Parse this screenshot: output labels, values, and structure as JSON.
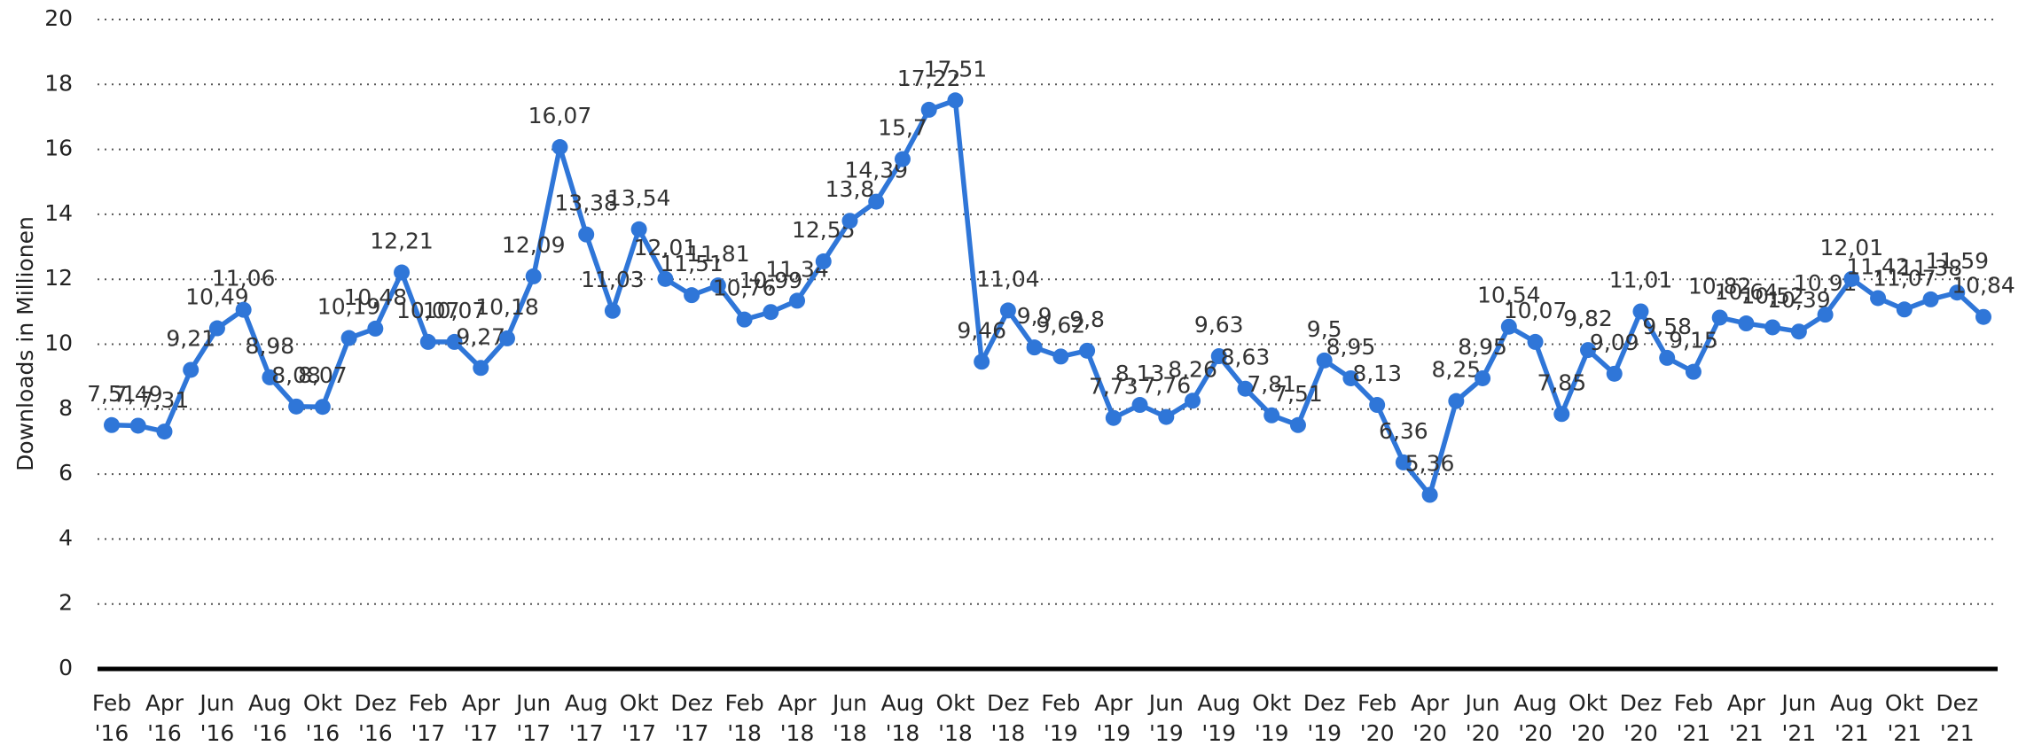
{
  "chart_data": {
    "type": "line",
    "y_label": "Downloads in Millionen",
    "categories": [
      "Feb '16",
      null,
      "Apr '16",
      null,
      "Jun '16",
      null,
      "Aug '16",
      null,
      "Okt '16",
      null,
      "Dez '16",
      null,
      "Feb '17",
      null,
      "Apr '17",
      null,
      "Jun '17",
      null,
      "Aug '17",
      null,
      "Okt '17",
      null,
      "Dez '17",
      null,
      "Feb '18",
      null,
      "Apr '18",
      null,
      "Jun '18",
      null,
      "Aug '18",
      null,
      "Okt '18",
      null,
      "Dez '18",
      null,
      "Feb '19",
      null,
      "Apr '19",
      null,
      "Jun '19",
      null,
      "Aug '19",
      null,
      "Okt '19",
      null,
      "Dez '19",
      null,
      "Feb '20",
      null,
      "Apr '20",
      null,
      "Jun '20",
      null,
      "Aug '20",
      null,
      "Okt '20",
      null,
      "Dez '20",
      null,
      "Feb '21",
      null,
      "Apr '21",
      null,
      "Jun '21",
      null,
      "Aug '21",
      null,
      "Okt '21",
      null,
      "Dez '21",
      null
    ],
    "series": [
      {
        "name": "Downloads",
        "color": "#2f76d8",
        "values": [
          7.51,
          7.49,
          7.31,
          9.21,
          10.49,
          11.06,
          8.98,
          8.08,
          8.07,
          10.19,
          10.48,
          12.21,
          10.07,
          10.07,
          9.27,
          10.18,
          12.09,
          16.07,
          13.38,
          11.03,
          13.54,
          12.01,
          11.51,
          11.81,
          10.76,
          10.99,
          11.34,
          12.55,
          13.8,
          14.39,
          15.7,
          17.22,
          17.51,
          9.46,
          11.04,
          9.9,
          9.62,
          9.8,
          7.73,
          8.13,
          7.76,
          8.26,
          9.63,
          8.63,
          7.81,
          7.51,
          9.5,
          8.95,
          8.13,
          6.36,
          5.36,
          8.25,
          8.95,
          10.54,
          10.07,
          7.85,
          9.82,
          9.09,
          11.01,
          9.58,
          9.15,
          10.82,
          10.64,
          10.52,
          10.39,
          10.91,
          12.01,
          11.42,
          11.07,
          11.38,
          11.59,
          10.84
        ],
        "value_labels": [
          "7,51",
          "7,49",
          "7,31",
          "9,21",
          "10,49",
          "11,06",
          "8,98",
          "8,08",
          "8,07",
          "10,19",
          "10,48",
          "12,21",
          "10,07",
          "10,07",
          "9,27",
          "10,18",
          "12,09",
          "16,07",
          "13,38",
          "11,03",
          "13,54",
          "12,01",
          "11,51",
          "11,81",
          "10,76",
          "10,99",
          "11,34",
          "12,55",
          "13,8",
          "14,39",
          "15,7",
          "17,22",
          "17,51",
          "9,46",
          "11,04",
          "9,9",
          "9,62",
          "9,8",
          "7,73",
          "8,13",
          "7,76",
          "8,26",
          "9,63",
          "8,63",
          "7,81",
          "7,51",
          "9,5",
          "8,95",
          "8,13",
          "6,36",
          "5,36",
          "8,25",
          "8,95",
          "10,54",
          "10,07",
          "7,85",
          "9,82",
          "9,09",
          "11,01",
          "9,58",
          "9,15",
          "10,82",
          "10,64",
          "10,52",
          "10,39",
          "10,91",
          "12,01",
          "11,42",
          "11,07",
          "11,38",
          "11,59",
          "10,84"
        ]
      }
    ],
    "ylim": [
      0,
      20
    ],
    "yticks": [
      0,
      2,
      4,
      6,
      8,
      10,
      12,
      14,
      16,
      18,
      20
    ],
    "grid": true
  }
}
